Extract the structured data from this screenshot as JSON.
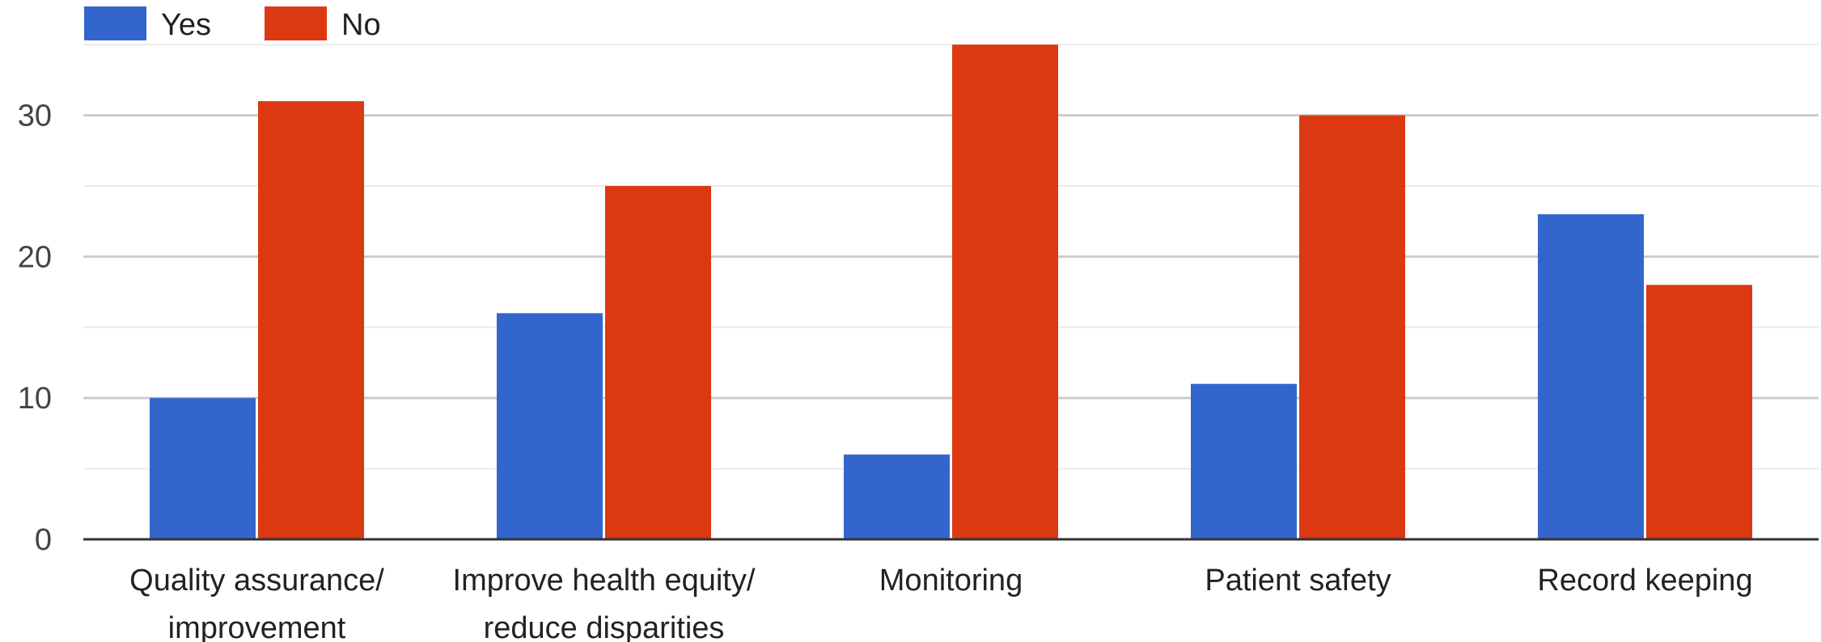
{
  "chart_data": {
    "type": "bar",
    "categories": [
      [
        "Quality assurance/",
        "improvement"
      ],
      [
        "Improve health equity/",
        "reduce disparities"
      ],
      [
        "Monitoring"
      ],
      [
        "Patient safety"
      ],
      [
        "Record keeping"
      ]
    ],
    "series": [
      {
        "name": "Yes",
        "color": "#3366cc",
        "values": [
          10,
          16,
          6,
          11,
          23
        ]
      },
      {
        "name": "No",
        "color": "#dc3912",
        "values": [
          31,
          25,
          35,
          30,
          18
        ]
      }
    ],
    "ylim": [
      0,
      35
    ],
    "yticks": [
      0,
      10,
      20,
      30
    ],
    "grid": true,
    "legend_position": "top-left"
  }
}
